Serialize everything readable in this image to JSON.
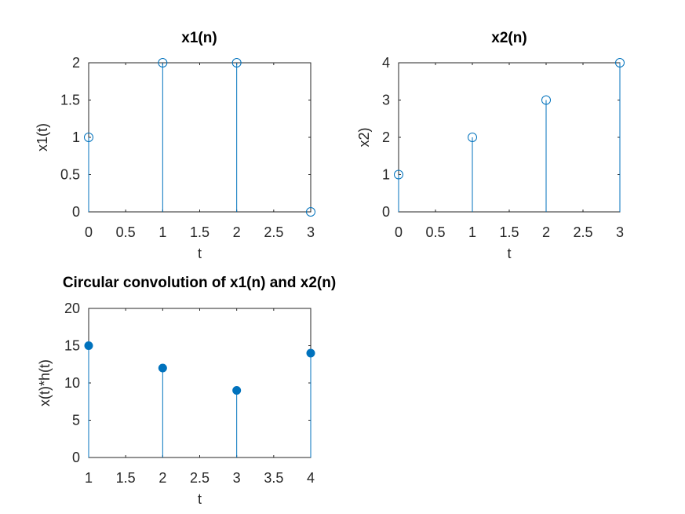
{
  "colors": {
    "series": "#0072BD",
    "axis": "#262626"
  },
  "chart_data": [
    {
      "type": "stem",
      "title": "x1(n)",
      "xlabel": "t",
      "ylabel": "x1(t)",
      "xlim": [
        0,
        3
      ],
      "ylim": [
        0,
        2
      ],
      "xticks": [
        "0",
        "0.5",
        "1",
        "1.5",
        "2",
        "2.5",
        "3"
      ],
      "yticks": [
        "0",
        "0.5",
        "1",
        "1.5",
        "2"
      ],
      "marker": "open-circle",
      "grid": false,
      "x": [
        0,
        1,
        2,
        3
      ],
      "y": [
        1,
        2,
        2,
        0
      ]
    },
    {
      "type": "stem",
      "title": "x2(n)",
      "xlabel": "t",
      "ylabel": "x2)",
      "xlim": [
        0,
        3
      ],
      "ylim": [
        0,
        4
      ],
      "xticks": [
        "0",
        "0.5",
        "1",
        "1.5",
        "2",
        "2.5",
        "3"
      ],
      "yticks": [
        "0",
        "1",
        "2",
        "3",
        "4"
      ],
      "marker": "open-circle",
      "grid": false,
      "x": [
        0,
        1,
        2,
        3
      ],
      "y": [
        1,
        2,
        3,
        4
      ]
    },
    {
      "type": "stem",
      "title": "Circular convolution of x1(n) and x2(n)",
      "xlabel": "t",
      "ylabel": "x(t)*h(t)",
      "xlim": [
        1,
        4
      ],
      "ylim": [
        0,
        20
      ],
      "xticks": [
        "1",
        "1.5",
        "2",
        "2.5",
        "3",
        "3.5",
        "4"
      ],
      "yticks": [
        "0",
        "5",
        "10",
        "15",
        "20"
      ],
      "marker": "filled-circle",
      "grid": false,
      "x": [
        1,
        2,
        3,
        4
      ],
      "y": [
        15,
        12,
        9,
        14
      ]
    }
  ]
}
